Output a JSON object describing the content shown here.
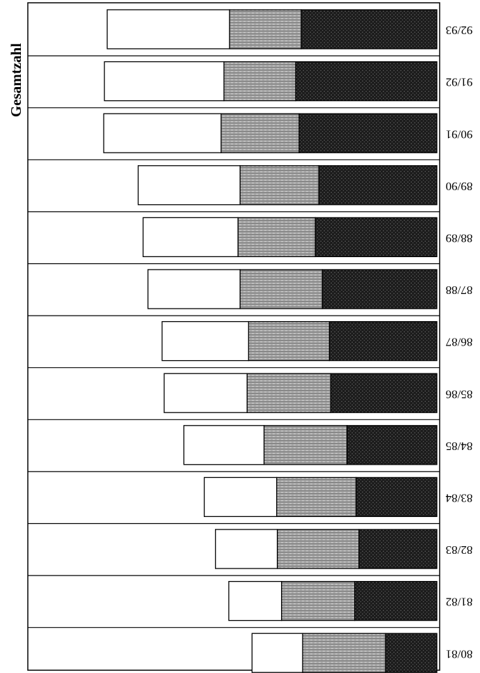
{
  "chart_data": {
    "type": "bar",
    "orientation": "horizontal",
    "stacked": true,
    "title": "Gesamtzahl",
    "categories": [
      "92/93",
      "91/92",
      "90/91",
      "89/90",
      "88/89",
      "87/88",
      "86/87",
      "85/86",
      "84/85",
      "83/84",
      "82/83",
      "81/82",
      "80/81"
    ],
    "series": [
      {
        "values": [
          174,
          170,
          167,
          145,
          135,
          131,
          123,
          118,
          114,
          103,
          88,
          75,
          72
        ]
      },
      {
        "values": [
          102,
          102,
          111,
          112,
          110,
          117,
          115,
          119,
          118,
          113,
          116,
          104,
          118
        ]
      },
      {
        "values": [
          193,
          201,
          196,
          168,
          173,
          163,
          153,
          151,
          128,
          115,
          111,
          117,
          73
        ]
      }
    ],
    "xlim": [
      0,
      580
    ],
    "grid": false,
    "legend": "none",
    "colors": {
      "frame": "#000000",
      "series": [
        "#ffffff",
        "#9a9a9a",
        "#1c1c1c"
      ]
    }
  }
}
